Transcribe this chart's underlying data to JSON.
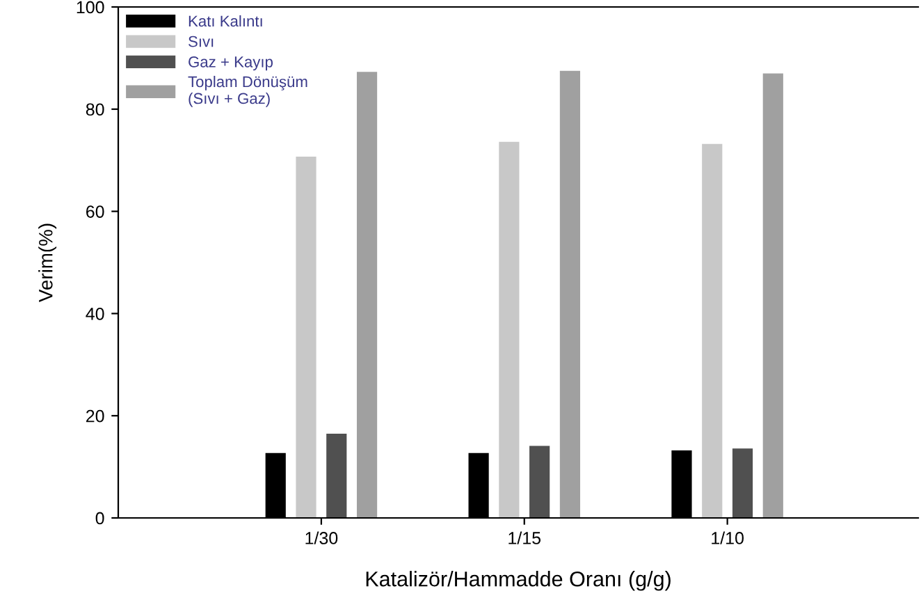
{
  "chart_data": {
    "type": "bar",
    "xlabel": "Katalizör/Hammadde Oranı (g/g)",
    "ylabel": "Verim(%)",
    "categories": [
      "1/30",
      "1/15",
      "1/10"
    ],
    "series": [
      {
        "name": "Katı Kalıntı",
        "color": "#000000",
        "values": [
          12.7,
          12.7,
          13.2
        ]
      },
      {
        "name": "Sıvı",
        "color": "#c8c8c8",
        "values": [
          70.7,
          73.6,
          73.2
        ]
      },
      {
        "name": "Gaz + Kayıp",
        "color": "#505050",
        "values": [
          16.5,
          14.1,
          13.6
        ]
      },
      {
        "name": "Toplam Dönüşüm\n(Sıvı + Gaz)",
        "color": "#a0a0a0",
        "values": [
          87.3,
          87.5,
          87.0
        ]
      }
    ],
    "ylim": [
      0,
      100
    ],
    "yticks": [
      0,
      20,
      40,
      60,
      80,
      100
    ],
    "grid": false,
    "legend": "top left"
  }
}
